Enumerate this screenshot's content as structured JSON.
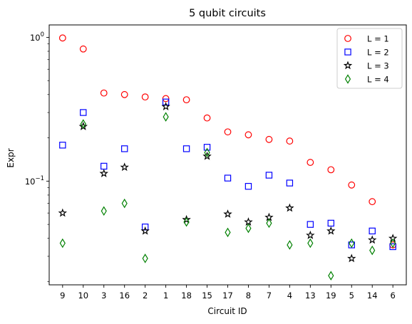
{
  "chart_data": {
    "type": "scatter",
    "title": "5 qubit circuits",
    "xlabel": "Circuit ID",
    "ylabel": "Expr",
    "yscale": "log",
    "ylim": [
      0.019,
      1.22
    ],
    "yticks": [
      {
        "value": 1,
        "base": "10",
        "exp": "0"
      },
      {
        "value": 0.1,
        "base": "10",
        "exp": "−1"
      }
    ],
    "categories": [
      "9",
      "10",
      "3",
      "16",
      "2",
      "1",
      "18",
      "15",
      "17",
      "8",
      "7",
      "4",
      "13",
      "19",
      "5",
      "14",
      "6"
    ],
    "grid": false,
    "legend": "top-right",
    "series": [
      {
        "name": "L = 1",
        "marker": "circle",
        "color": "#ff0000",
        "values": [
          0.99,
          0.83,
          0.41,
          0.4,
          0.385,
          0.375,
          0.368,
          0.275,
          0.22,
          0.21,
          0.195,
          0.19,
          0.135,
          0.12,
          0.094,
          0.072,
          0.036
        ]
      },
      {
        "name": "L = 2",
        "marker": "square",
        "color": "#0000ff",
        "values": [
          0.178,
          0.3,
          0.127,
          0.168,
          0.048,
          0.355,
          0.168,
          0.172,
          0.105,
          0.092,
          0.11,
          0.097,
          0.05,
          0.051,
          0.036,
          0.045,
          0.035
        ]
      },
      {
        "name": "L = 3",
        "marker": "star",
        "color": "#000000",
        "values": [
          0.06,
          0.24,
          0.113,
          0.125,
          0.045,
          0.33,
          0.054,
          0.149,
          0.059,
          0.052,
          0.056,
          0.065,
          0.042,
          0.045,
          0.029,
          0.039,
          0.04
        ]
      },
      {
        "name": "L = 4",
        "marker": "diamond",
        "color": "#008000",
        "values": [
          0.037,
          0.25,
          0.062,
          0.07,
          0.029,
          0.28,
          0.052,
          0.158,
          0.044,
          0.047,
          0.051,
          0.036,
          0.037,
          0.022,
          0.037,
          0.033,
          0.037
        ]
      }
    ]
  }
}
